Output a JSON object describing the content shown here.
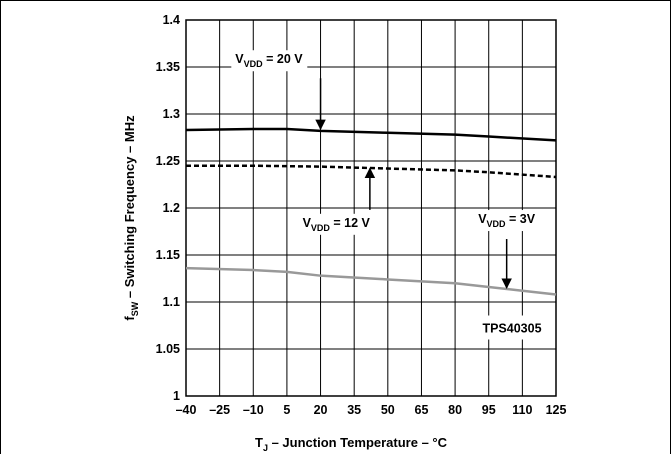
{
  "chart_data": {
    "type": "line",
    "xlabel": {
      "prefix": "T",
      "sub": "J",
      "rest": " – Junction Temperature – °C"
    },
    "ylabel": {
      "prefix": "f",
      "sub": "SW",
      "rest": " – Switching Frequency – MHz"
    },
    "xlim": [
      -40,
      125
    ],
    "ylim": [
      1.0,
      1.4
    ],
    "x_ticks": [
      -40,
      -25,
      -10,
      5,
      20,
      35,
      50,
      65,
      80,
      95,
      110,
      125
    ],
    "x_tick_labels": [
      "–40",
      "–25",
      "–10",
      "5",
      "20",
      "35",
      "50",
      "65",
      "80",
      "95",
      "110",
      "125"
    ],
    "y_ticks": [
      1.0,
      1.05,
      1.1,
      1.15,
      1.2,
      1.25,
      1.3,
      1.35,
      1.4
    ],
    "y_tick_labels": [
      "1",
      "1.05",
      "1.1",
      "1.15",
      "1.2",
      "1.25",
      "1.3",
      "1.35",
      "1.4"
    ],
    "grid": true,
    "series": [
      {
        "name": "V_VDD = 20 V",
        "style": "solid",
        "color": "#000000",
        "x": [
          -40,
          -10,
          5,
          20,
          50,
          80,
          95,
          125
        ],
        "y": [
          1.283,
          1.284,
          1.284,
          1.282,
          1.28,
          1.278,
          1.276,
          1.272
        ]
      },
      {
        "name": "V_VDD = 12 V",
        "style": "dashed",
        "color": "#000000",
        "x": [
          -40,
          -10,
          20,
          50,
          80,
          95,
          125
        ],
        "y": [
          1.245,
          1.245,
          1.244,
          1.242,
          1.24,
          1.238,
          1.233
        ]
      },
      {
        "name": "V_VDD = 3V",
        "style": "solid",
        "color": "#999999",
        "x": [
          -40,
          -10,
          5,
          20,
          50,
          80,
          95,
          110,
          125
        ],
        "y": [
          1.136,
          1.134,
          1.132,
          1.128,
          1.124,
          1.12,
          1.116,
          1.112,
          1.108
        ]
      }
    ],
    "annotations": [
      {
        "id": "vdd20",
        "pre": "V",
        "sub": "VDD",
        "post": " = 20 V",
        "text_x": -3,
        "text_y": 1.354,
        "arrow_x": 20,
        "arrow_from": 1.338,
        "arrow_to": 1.284
      },
      {
        "id": "vdd12",
        "pre": "V",
        "sub": "VDD",
        "post": " = 12 V",
        "text_x": 27,
        "text_y": 1.18,
        "arrow_x": 42,
        "arrow_from": 1.198,
        "arrow_to": 1.242
      },
      {
        "id": "vdd3",
        "pre": "V",
        "sub": "VDD",
        "post": " = 3V",
        "text_x": 103,
        "text_y": 1.184,
        "arrow_x": 103,
        "arrow_from": 1.167,
        "arrow_to": 1.115
      }
    ],
    "label_box": "TPS40305"
  }
}
